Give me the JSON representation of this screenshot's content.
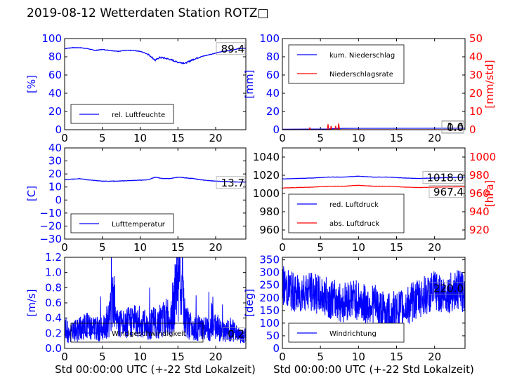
{
  "figure_title": "2019-08-12 Wetterdaten Station ROTZ□",
  "colors": {
    "left_axis": "#0000ff",
    "right_axis": "#ff0000",
    "series_blue": "#0000ff",
    "series_red": "#ff0000"
  },
  "chart_data": [
    {
      "type": "line",
      "panel": "top-left",
      "xlabel": "",
      "ylabel": "[%]",
      "xlim": [
        0,
        24
      ],
      "ylim": [
        0,
        100
      ],
      "xticks": [
        "0",
        "5",
        "10",
        "15",
        "20"
      ],
      "yticks": [
        "0",
        "20",
        "40",
        "60",
        "80",
        "100"
      ],
      "legend_placement": "lower-left",
      "last_value_label": "89.4",
      "series": [
        {
          "name": "rel. Luftfeuchte",
          "color": "#0000ff",
          "x": [
            0,
            1,
            2,
            3,
            4,
            5,
            6,
            7,
            8,
            9,
            10,
            11,
            11.5,
            12,
            12.5,
            13,
            14,
            15,
            16,
            17,
            18,
            19,
            20,
            21,
            22,
            23,
            24
          ],
          "y": [
            89,
            90,
            90,
            89,
            87,
            88,
            87,
            86,
            87,
            87,
            86,
            83,
            80,
            76,
            79,
            79,
            77,
            74,
            73,
            77,
            80,
            82,
            84,
            86,
            87,
            89,
            89.4
          ]
        }
      ]
    },
    {
      "type": "line",
      "panel": "top-right",
      "xlabel": "",
      "ylabel": "[mm]",
      "ylabel_right": "[mm/std]",
      "xlim": [
        0,
        24
      ],
      "ylim": [
        0,
        100
      ],
      "ylim_right": [
        0,
        50
      ],
      "xticks": [
        "0",
        "5",
        "10",
        "15",
        "20"
      ],
      "yticks": [
        "0",
        "20",
        "40",
        "60",
        "80",
        "100"
      ],
      "yticks_right": [
        "0",
        "10",
        "20",
        "30",
        "40",
        "50"
      ],
      "legend_placement": "upper-left",
      "last_value_label": "1.6",
      "last_value_label_2": "0.0",
      "series": [
        {
          "name": "kum. Niederschlag",
          "axis": "left",
          "color": "#0000ff",
          "x": [
            0,
            6,
            7,
            8,
            24
          ],
          "y": [
            0.5,
            0.8,
            1.2,
            1.5,
            1.6
          ]
        },
        {
          "name": "Niederschlagsrate",
          "axis": "right",
          "color": "#ff0000",
          "x": [
            0,
            3.5,
            3.6,
            3.7,
            5.9,
            6.0,
            6.1,
            6.3,
            6.4,
            6.5,
            6.9,
            7.0,
            7.1,
            7.3,
            7.4,
            7.5,
            8,
            24
          ],
          "y": [
            0,
            0,
            1,
            0,
            0,
            3,
            0,
            0,
            2,
            0,
            0,
            2,
            0,
            0,
            3.5,
            0,
            0,
            0
          ]
        }
      ]
    },
    {
      "type": "line",
      "panel": "middle-left",
      "xlabel": "",
      "ylabel": "[C]",
      "xlim": [
        0,
        24
      ],
      "ylim": [
        -30,
        40
      ],
      "xticks": [
        "0",
        "5",
        "10",
        "15",
        "20"
      ],
      "yticks": [
        "−30",
        "−20",
        "−10",
        "0",
        "10",
        "20",
        "30",
        "40"
      ],
      "legend_placement": "lower-left",
      "last_value_label": "13.7",
      "series": [
        {
          "name": "Lufttemperatur",
          "color": "#0000ff",
          "x": [
            0,
            2,
            3,
            5,
            7,
            9,
            11,
            12,
            13,
            14,
            15,
            16,
            17,
            18,
            20,
            22,
            24
          ],
          "y": [
            15.5,
            16.5,
            15.5,
            14.5,
            14.5,
            15.0,
            15.5,
            17.5,
            16.5,
            16.5,
            17.5,
            17.0,
            16.5,
            15.5,
            14.5,
            14.0,
            13.7
          ]
        }
      ]
    },
    {
      "type": "line",
      "panel": "middle-right",
      "xlabel": "",
      "ylabel": "",
      "ylabel_right": "[hPa]",
      "xlim": [
        0,
        24
      ],
      "ylim": [
        950,
        1050
      ],
      "ylim_right": [
        910,
        1010
      ],
      "xticks": [
        "0",
        "5",
        "10",
        "15",
        "20"
      ],
      "yticks": [
        "960",
        "980",
        "1000",
        "1020",
        "1040"
      ],
      "yticks_right": [
        "920",
        "940",
        "960",
        "980",
        "1000"
      ],
      "legend_placement": "lower-left",
      "last_value_label": "1018.0",
      "last_value_label_2": "967.4",
      "series": [
        {
          "name": "red. Luftdruck",
          "axis": "left",
          "color": "#0000ff",
          "x": [
            0,
            2,
            4,
            6,
            8,
            10,
            12,
            14,
            16,
            18,
            20,
            22,
            24
          ],
          "y": [
            1016,
            1016.5,
            1017,
            1018,
            1018,
            1019,
            1018,
            1018,
            1017,
            1016.5,
            1017,
            1017.5,
            1018.0
          ]
        },
        {
          "name": "abs. Luftdruck",
          "axis": "right",
          "color": "#ff0000",
          "x": [
            0,
            2,
            4,
            6,
            8,
            10,
            12,
            14,
            16,
            18,
            20,
            22,
            24
          ],
          "y": [
            966,
            966.5,
            967,
            968,
            968,
            969,
            968,
            968,
            967,
            966.5,
            967,
            967.2,
            967.4
          ]
        }
      ]
    },
    {
      "type": "line",
      "panel": "bottom-left",
      "xlabel": "Std 00:00:00 UTC (+-22 Std Lokalzeit)",
      "ylabel": "[m/s]",
      "xlim": [
        0,
        24
      ],
      "ylim": [
        0,
        1.2
      ],
      "xticks": [
        "0",
        "5",
        "10",
        "15",
        "20"
      ],
      "yticks": [
        "0.0",
        "0.2",
        "0.4",
        "0.6",
        "0.8",
        "1.0",
        "1.2"
      ],
      "legend_placement": "lower-left",
      "last_value_label": "0.2",
      "series": [
        {
          "name": "Windgeschwindigkeit",
          "color": "#0000ff",
          "x": [
            0,
            1,
            2,
            3,
            4,
            5,
            6,
            6.5,
            7,
            8,
            9,
            10,
            11,
            12,
            13,
            14,
            14.5,
            15,
            15.5,
            16,
            17,
            18,
            19,
            20,
            21,
            22,
            23,
            24
          ],
          "y": [
            0.2,
            0.25,
            0.3,
            0.35,
            0.3,
            0.3,
            0.5,
            0.95,
            0.4,
            0.35,
            0.45,
            0.4,
            0.35,
            0.4,
            0.45,
            0.5,
            0.7,
            1.2,
            0.9,
            0.4,
            0.35,
            0.3,
            0.3,
            0.35,
            0.25,
            0.3,
            0.2,
            0.2
          ]
        }
      ]
    },
    {
      "type": "line",
      "panel": "bottom-right",
      "xlabel": "Std 00:00:00 UTC (+-22 Std Lokalzeit)",
      "ylabel": "[deg]",
      "xlim": [
        0,
        24
      ],
      "ylim": [
        0,
        360
      ],
      "xticks": [
        "0",
        "5",
        "10",
        "15",
        "20"
      ],
      "yticks": [
        "0",
        "50",
        "100",
        "150",
        "200",
        "250",
        "300",
        "350"
      ],
      "legend_placement": "lower-left",
      "last_value_label": "220.0",
      "series": [
        {
          "name": "Windrichtung",
          "color": "#0000ff",
          "x": [
            0,
            1,
            2,
            3,
            4,
            5,
            6,
            7,
            8,
            9,
            10,
            11,
            12,
            13,
            14,
            15,
            16,
            17,
            18,
            19,
            20,
            21,
            22,
            23,
            24
          ],
          "y": [
            250,
            230,
            210,
            230,
            220,
            210,
            200,
            190,
            180,
            200,
            190,
            170,
            180,
            150,
            140,
            150,
            160,
            180,
            200,
            210,
            230,
            210,
            220,
            230,
            220
          ]
        }
      ]
    }
  ]
}
